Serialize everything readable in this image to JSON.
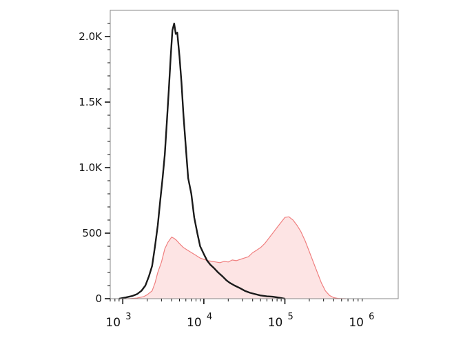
{
  "chart_data": {
    "type": "area",
    "x_scale": "log",
    "xlim": [
      700,
      2500000
    ],
    "ylim": [
      0,
      2200
    ],
    "x_ticks": [
      {
        "value": 1000,
        "base": "10",
        "exp": "3"
      },
      {
        "value": 10000,
        "base": "10",
        "exp": "4"
      },
      {
        "value": 100000,
        "base": "10",
        "exp": "5"
      },
      {
        "value": 1000000,
        "base": "10",
        "exp": "6"
      }
    ],
    "y_ticks": [
      {
        "value": 0,
        "label": "0"
      },
      {
        "value": 500,
        "label": "500"
      },
      {
        "value": 1000,
        "label": "1.0K"
      },
      {
        "value": 1500,
        "label": "1.5K"
      },
      {
        "value": 2000,
        "label": "2.0K"
      }
    ],
    "grid": false,
    "series": [
      {
        "style": "filled",
        "color": "#f08080",
        "fill": "#fde4e4",
        "x": [
          900,
          1200,
          1500,
          1800,
          2000,
          2300,
          2500,
          2700,
          3000,
          3300,
          3600,
          3800,
          4000,
          4300,
          4600,
          5000,
          5600,
          6300,
          7100,
          8000,
          9000,
          10000,
          11200,
          12600,
          14100,
          15800,
          17800,
          20000,
          22400,
          25100,
          28200,
          31600,
          35500,
          39800,
          44700,
          50100,
          56200,
          63100,
          70800,
          79400,
          89100,
          100000,
          112000,
          126000,
          141000,
          158000,
          178000,
          200000,
          224000,
          251000,
          282000,
          316000,
          355000,
          400000,
          450000,
          500000,
          560000
        ],
        "y": [
          0,
          0,
          5,
          15,
          30,
          60,
          120,
          200,
          280,
          380,
          430,
          450,
          470,
          460,
          445,
          420,
          390,
          370,
          350,
          330,
          310,
          300,
          290,
          285,
          280,
          275,
          285,
          280,
          295,
          290,
          300,
          310,
          320,
          350,
          370,
          390,
          420,
          460,
          500,
          540,
          580,
          620,
          625,
          600,
          560,
          510,
          440,
          360,
          280,
          200,
          120,
          60,
          25,
          8,
          2,
          0,
          0
        ]
      },
      {
        "style": "line",
        "color": "#1a1a1a",
        "x": [
          900,
          1100,
          1300,
          1500,
          1700,
          1900,
          2100,
          2300,
          2500,
          2700,
          2900,
          3100,
          3300,
          3500,
          3700,
          3900,
          4100,
          4300,
          4500,
          4700,
          5000,
          5300,
          5600,
          6000,
          6400,
          7000,
          7600,
          8300,
          9000,
          10000,
          11000,
          12000,
          13500,
          15000,
          17000,
          19000,
          21000,
          24000,
          28000,
          32000,
          37000,
          43000,
          50000,
          60000,
          70000,
          80000,
          90000,
          100000
        ],
        "y": [
          0,
          10,
          20,
          35,
          60,
          100,
          170,
          250,
          400,
          560,
          750,
          920,
          1100,
          1350,
          1600,
          1850,
          2050,
          2100,
          2020,
          2030,
          1850,
          1650,
          1400,
          1150,
          920,
          800,
          620,
          500,
          400,
          340,
          290,
          260,
          230,
          200,
          170,
          140,
          120,
          100,
          80,
          60,
          45,
          35,
          25,
          18,
          15,
          10,
          5,
          0
        ]
      }
    ]
  }
}
